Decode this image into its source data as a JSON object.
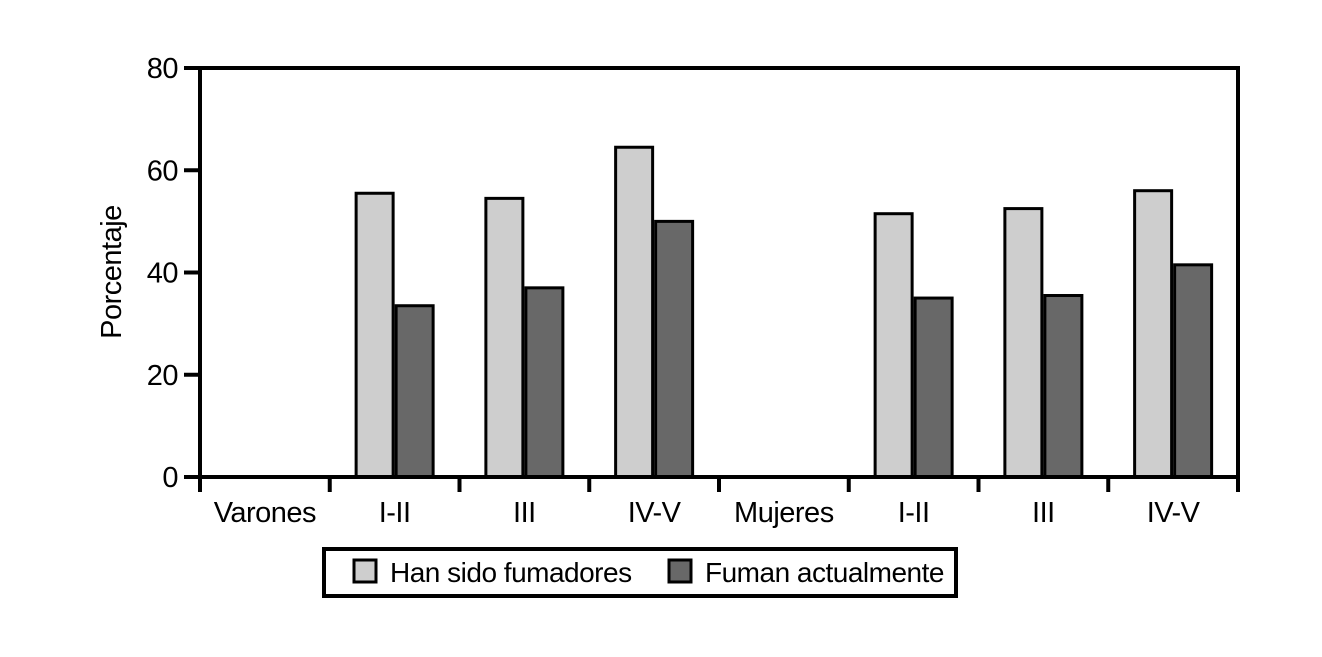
{
  "chart_data": {
    "type": "bar",
    "title": "",
    "xlabel": "",
    "ylabel": "Porcentaje",
    "ylim": [
      0,
      80
    ],
    "yticks": [
      0,
      20,
      40,
      60,
      80
    ],
    "grid": false,
    "legend_position": "bottom",
    "axis_color": "#000000",
    "plot_frame": "closed-box",
    "categories": [
      "Varones",
      "I-II",
      "III",
      "IV-V",
      "Mujeres",
      "I-II",
      "III",
      "IV-V"
    ],
    "series": [
      {
        "name": "Han sido fumadores",
        "color": "#cecece",
        "values": [
          null,
          55.5,
          54.5,
          64.5,
          null,
          51.5,
          52.5,
          56
        ]
      },
      {
        "name": "Fuman actualmente",
        "color": "#686868",
        "values": [
          null,
          33.5,
          37,
          50,
          null,
          35,
          35.5,
          41.5
        ]
      }
    ]
  }
}
